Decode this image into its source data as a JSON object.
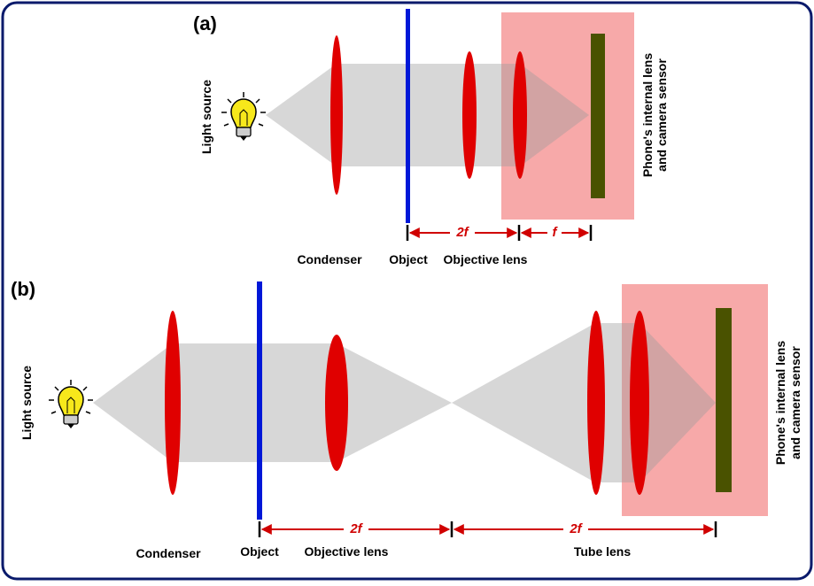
{
  "panels": [
    {
      "label": "(a)",
      "light_source": "Light source",
      "condenser": "Condenser",
      "object": "Object",
      "objective_lens": "Objective lens",
      "distances": [
        "2f",
        "f"
      ],
      "sensor_label": [
        "Phone's internal lens",
        "and camera sensor"
      ]
    },
    {
      "label": "(b)",
      "light_source": "Light source",
      "condenser": "Condenser",
      "object": "Object",
      "objective_lens": "Objective lens",
      "tube_lens": "Tube lens",
      "distances": [
        "2f",
        "2f"
      ],
      "sensor_label": [
        "Phone's internal lens",
        "and camera sensor"
      ]
    }
  ]
}
